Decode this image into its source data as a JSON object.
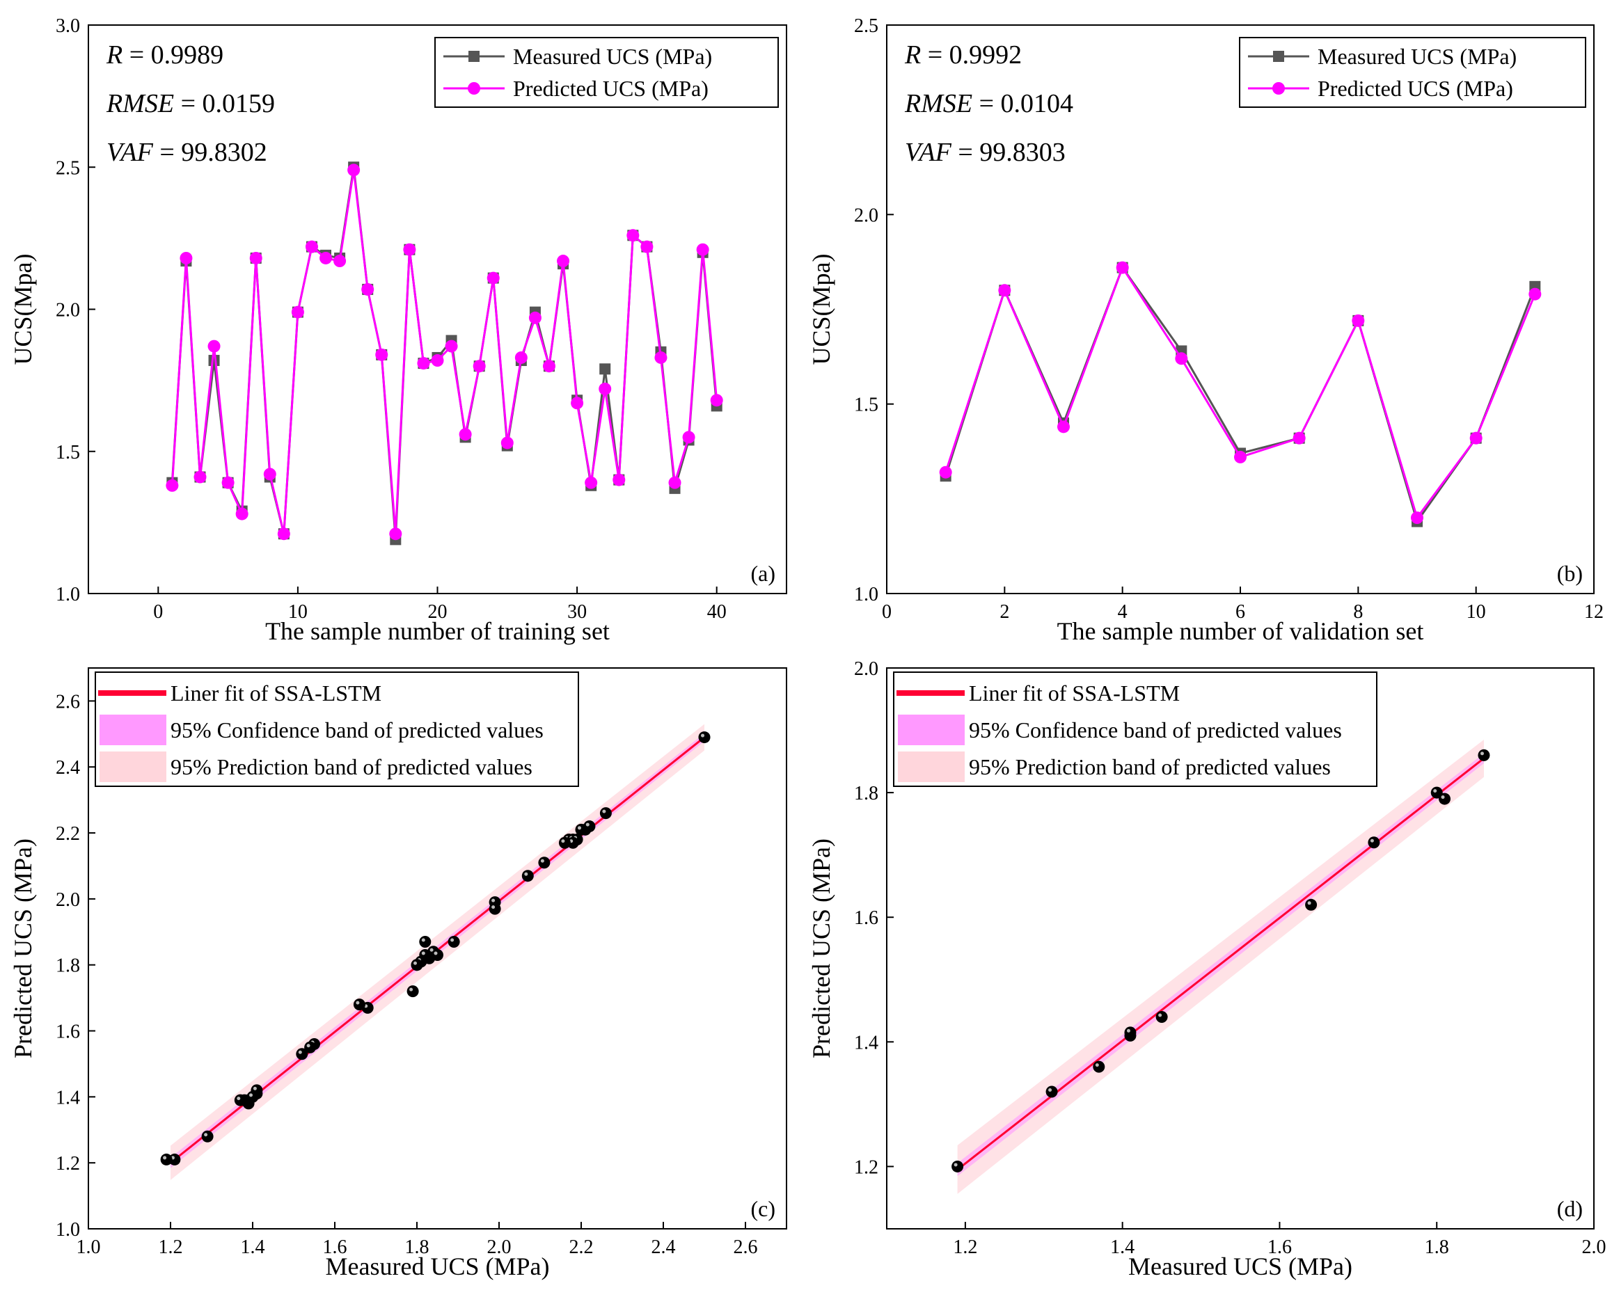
{
  "colors": {
    "measured": "#555555",
    "predicted": "#ff00ff",
    "fit_line": "#ff0033",
    "confidence_band": "#ff99ff",
    "prediction_band": "#ffd6dc",
    "point": "#000000"
  },
  "chart_data": [
    {
      "panel": "(a)",
      "type": "line",
      "xlabel": "The sample number of training set",
      "ylabel": "UCS(Mpa)",
      "xlim": [
        -5,
        45
      ],
      "ylim": [
        1.0,
        3.0
      ],
      "xticks": [
        "0",
        "10",
        "20",
        "30",
        "40"
      ],
      "yticks": [
        "1.0",
        "1.5",
        "2.0",
        "2.5",
        "3.0"
      ],
      "xtick_values": [
        0,
        10,
        20,
        30,
        40
      ],
      "ytick_values": [
        1.0,
        1.5,
        2.0,
        2.5,
        3.0
      ],
      "stats": [
        {
          "name": "R",
          "value": " = 0.9989"
        },
        {
          "name": "RMSE",
          "value": " = 0.0159"
        },
        {
          "name": "VAF",
          "value": " = 99.8302"
        }
      ],
      "legend": [
        "Measured UCS (MPa)",
        "Predicted UCS (MPa)"
      ],
      "x": [
        1,
        2,
        3,
        4,
        5,
        6,
        7,
        8,
        9,
        10,
        11,
        12,
        13,
        14,
        15,
        16,
        17,
        18,
        19,
        20,
        21,
        22,
        23,
        24,
        25,
        26,
        27,
        28,
        29,
        30,
        31,
        32,
        33,
        34,
        35,
        36,
        37,
        38,
        39,
        40
      ],
      "series": [
        {
          "name": "Measured UCS (MPa)",
          "values": [
            1.39,
            2.17,
            1.41,
            1.82,
            1.39,
            1.29,
            2.18,
            1.41,
            1.21,
            1.99,
            2.22,
            2.19,
            2.18,
            2.5,
            2.07,
            1.84,
            1.19,
            2.21,
            1.81,
            1.83,
            1.89,
            1.55,
            1.8,
            2.11,
            1.52,
            1.82,
            1.99,
            1.8,
            2.16,
            1.68,
            1.38,
            1.79,
            1.4,
            2.26,
            2.22,
            1.85,
            1.37,
            1.54,
            2.2,
            1.66
          ]
        },
        {
          "name": "Predicted UCS (MPa)",
          "values": [
            1.38,
            2.18,
            1.41,
            1.87,
            1.39,
            1.28,
            2.18,
            1.42,
            1.21,
            1.99,
            2.22,
            2.18,
            2.17,
            2.49,
            2.07,
            1.84,
            1.21,
            2.21,
            1.81,
            1.82,
            1.87,
            1.56,
            1.8,
            2.11,
            1.53,
            1.83,
            1.97,
            1.8,
            2.17,
            1.67,
            1.39,
            1.72,
            1.4,
            2.26,
            2.22,
            1.83,
            1.39,
            1.55,
            2.21,
            1.68
          ]
        }
      ]
    },
    {
      "panel": "(b)",
      "type": "line",
      "xlabel": "The sample number of validation set",
      "ylabel": "UCS(Mpa)",
      "xlim": [
        0,
        12
      ],
      "ylim": [
        1.0,
        2.5
      ],
      "xticks": [
        "0",
        "2",
        "4",
        "6",
        "8",
        "10",
        "12"
      ],
      "yticks": [
        "1.0",
        "1.5",
        "2.0",
        "2.5"
      ],
      "xtick_values": [
        0,
        2,
        4,
        6,
        8,
        10,
        12
      ],
      "ytick_values": [
        1.0,
        1.5,
        2.0,
        2.5
      ],
      "stats": [
        {
          "name": "R",
          "value": " = 0.9992"
        },
        {
          "name": "RMSE",
          "value": " = 0.0104"
        },
        {
          "name": "VAF",
          "value": " = 99.8303"
        }
      ],
      "legend": [
        "Measured UCS (MPa)",
        "Predicted UCS (MPa)"
      ],
      "x": [
        1,
        2,
        3,
        4,
        5,
        6,
        7,
        8,
        9,
        10,
        11
      ],
      "series": [
        {
          "name": "Measured UCS (MPa)",
          "values": [
            1.31,
            1.8,
            1.45,
            1.86,
            1.64,
            1.37,
            1.41,
            1.72,
            1.19,
            1.41,
            1.81
          ]
        },
        {
          "name": "Predicted UCS (MPa)",
          "values": [
            1.32,
            1.8,
            1.44,
            1.86,
            1.62,
            1.36,
            1.41,
            1.72,
            1.2,
            1.41,
            1.79
          ]
        }
      ]
    },
    {
      "panel": "(c)",
      "type": "scatter",
      "xlabel": "Measured UCS (MPa)",
      "ylabel": "Predicted UCS (MPa)",
      "xlim": [
        1.0,
        2.7
      ],
      "ylim": [
        1.0,
        2.7
      ],
      "xticks": [
        "1.0",
        "1.2",
        "1.4",
        "1.6",
        "1.8",
        "2.0",
        "2.2",
        "2.4",
        "2.6"
      ],
      "yticks": [
        "1.0",
        "1.2",
        "1.4",
        "1.6",
        "1.8",
        "2.0",
        "2.2",
        "2.4",
        "2.6"
      ],
      "xtick_values": [
        1.0,
        1.2,
        1.4,
        1.6,
        1.8,
        2.0,
        2.2,
        2.4,
        2.6
      ],
      "ytick_values": [
        1.0,
        1.2,
        1.4,
        1.6,
        1.8,
        2.0,
        2.2,
        2.4,
        2.6
      ],
      "legend": [
        "Liner fit of SSA-LSTM",
        "95% Confidence band of predicted values",
        "95% Prediction band of predicted values"
      ],
      "fit": {
        "x": [
          1.2,
          2.5
        ],
        "y": [
          1.2,
          2.49
        ],
        "conf_halfwidth": 0.012,
        "pred_halfwidth": 0.04
      },
      "points": {
        "x": [
          1.39,
          2.17,
          1.41,
          1.82,
          1.39,
          1.29,
          2.18,
          1.41,
          1.21,
          1.99,
          2.22,
          2.19,
          2.18,
          2.5,
          2.07,
          1.84,
          1.19,
          2.21,
          1.81,
          1.83,
          1.89,
          1.55,
          1.8,
          2.11,
          1.52,
          1.82,
          1.99,
          1.8,
          2.16,
          1.68,
          1.38,
          1.79,
          1.4,
          2.26,
          2.22,
          1.85,
          1.37,
          1.54,
          2.2,
          1.66
        ],
        "y": [
          1.38,
          2.18,
          1.41,
          1.87,
          1.39,
          1.28,
          2.18,
          1.42,
          1.21,
          1.99,
          2.22,
          2.18,
          2.17,
          2.49,
          2.07,
          1.84,
          1.21,
          2.21,
          1.81,
          1.82,
          1.87,
          1.56,
          1.8,
          2.11,
          1.53,
          1.83,
          1.97,
          1.8,
          2.17,
          1.67,
          1.39,
          1.72,
          1.4,
          2.26,
          2.22,
          1.83,
          1.39,
          1.55,
          2.21,
          1.68
        ]
      }
    },
    {
      "panel": "(d)",
      "type": "scatter",
      "xlabel": "Measured UCS (MPa)",
      "ylabel": "Predicted UCS (MPa)",
      "xlim": [
        1.1,
        2.0
      ],
      "ylim": [
        1.1,
        2.0
      ],
      "xticks": [
        "1.2",
        "1.4",
        "1.6",
        "1.8",
        "2.0"
      ],
      "yticks": [
        "1.2",
        "1.4",
        "1.6",
        "1.8",
        "2.0"
      ],
      "xtick_values": [
        1.2,
        1.4,
        1.6,
        1.8,
        2.0
      ],
      "ytick_values": [
        1.2,
        1.4,
        1.6,
        1.8,
        2.0
      ],
      "legend": [
        "Liner fit of SSA-LSTM",
        "95% Confidence band of predicted values",
        "95% Prediction band of predicted values"
      ],
      "fit": {
        "x": [
          1.19,
          1.86
        ],
        "y": [
          1.195,
          1.855
        ],
        "conf_halfwidth": 0.008,
        "pred_halfwidth": 0.03
      },
      "points": {
        "x": [
          1.31,
          1.8,
          1.45,
          1.86,
          1.64,
          1.37,
          1.41,
          1.72,
          1.19,
          1.41,
          1.81
        ],
        "y": [
          1.32,
          1.8,
          1.44,
          1.86,
          1.62,
          1.36,
          1.41,
          1.72,
          1.2,
          1.415,
          1.79
        ]
      }
    }
  ]
}
